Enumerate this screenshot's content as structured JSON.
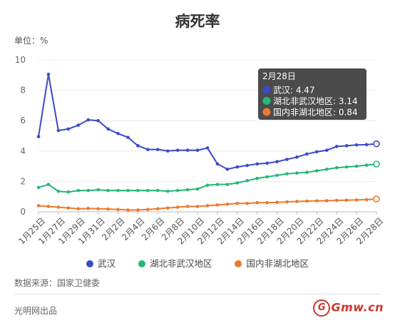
{
  "page": {
    "title": "病死率",
    "unit_label": "单位：%",
    "source": "数据来源：国家卫健委",
    "publisher": "光明网出品",
    "logo_text": "Gmw.cn",
    "logo_glyph": "G"
  },
  "tooltip": {
    "title": "2月28日",
    "lines": [
      "武汉: 4.47",
      "湖北非武汉地区: 3.14",
      "国内非湖北地区: 0.84"
    ]
  },
  "chart_data": {
    "type": "line",
    "title": "病死率",
    "ylabel": "单位：%",
    "ylim": [
      0,
      10
    ],
    "yticks": [
      0,
      2,
      4,
      6,
      8,
      10
    ],
    "grid": true,
    "legend_position": "bottom",
    "x_labels": [
      "1月25日",
      "1月27日",
      "1月29日",
      "1月31日",
      "2月2日",
      "2月4日",
      "2月6日",
      "2月8日",
      "2月10日",
      "2月12日",
      "2月14日",
      "2月16日",
      "2月18日",
      "2月20日",
      "2月22日",
      "2月24日",
      "2月26日",
      "2月28日"
    ],
    "x": [
      "1月25日",
      "1月26日",
      "1月27日",
      "1月28日",
      "1月29日",
      "1月30日",
      "1月31日",
      "2月1日",
      "2月2日",
      "2月3日",
      "2月4日",
      "2月5日",
      "2月6日",
      "2月7日",
      "2月8日",
      "2月9日",
      "2月10日",
      "2月11日",
      "2月12日",
      "2月13日",
      "2月14日",
      "2月15日",
      "2月16日",
      "2月17日",
      "2月18日",
      "2月19日",
      "2月20日",
      "2月21日",
      "2月22日",
      "2月23日",
      "2月24日",
      "2月25日",
      "2月26日",
      "2月27日",
      "2月28日"
    ],
    "series": [
      {
        "name": "武汉",
        "color": "#3b4bc8",
        "values": [
          4.95,
          9.05,
          5.35,
          5.45,
          5.7,
          6.05,
          6.0,
          5.45,
          5.15,
          4.9,
          4.35,
          4.1,
          4.1,
          4.0,
          4.05,
          4.05,
          4.05,
          4.2,
          3.15,
          2.8,
          2.95,
          3.05,
          3.15,
          3.2,
          3.3,
          3.45,
          3.6,
          3.8,
          3.95,
          4.05,
          4.3,
          4.35,
          4.4,
          4.42,
          4.47
        ]
      },
      {
        "name": "湖北非武汉地区",
        "color": "#23b878",
        "values": [
          1.6,
          1.8,
          1.35,
          1.3,
          1.4,
          1.4,
          1.45,
          1.4,
          1.4,
          1.4,
          1.4,
          1.4,
          1.4,
          1.35,
          1.4,
          1.45,
          1.5,
          1.75,
          1.8,
          1.8,
          1.9,
          2.05,
          2.2,
          2.3,
          2.4,
          2.5,
          2.55,
          2.6,
          2.7,
          2.8,
          2.9,
          2.95,
          3.0,
          3.07,
          3.14
        ]
      },
      {
        "name": "国内非湖北地区",
        "color": "#ec7a2c",
        "values": [
          0.4,
          0.35,
          0.3,
          0.25,
          0.2,
          0.22,
          0.2,
          0.18,
          0.15,
          0.12,
          0.12,
          0.15,
          0.2,
          0.25,
          0.3,
          0.35,
          0.35,
          0.4,
          0.45,
          0.5,
          0.55,
          0.55,
          0.6,
          0.6,
          0.62,
          0.65,
          0.68,
          0.7,
          0.72,
          0.73,
          0.75,
          0.76,
          0.78,
          0.8,
          0.84
        ]
      }
    ]
  }
}
